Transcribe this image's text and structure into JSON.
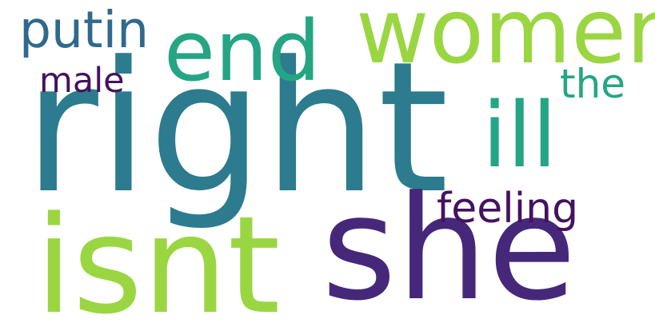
{
  "words": {
    "right": {
      "text": "right",
      "color": "#2c7b8e"
    },
    "she": {
      "text": "she",
      "color": "#46287a"
    },
    "isnt": {
      "text": "isnt",
      "color": "#9ad641"
    },
    "women": {
      "text": "women",
      "color": "#9ad641"
    },
    "end": {
      "text": "end",
      "color": "#25a584"
    },
    "ill": {
      "text": "ill",
      "color": "#25a584"
    },
    "putin": {
      "text": "putin",
      "color": "#2f6a8d"
    },
    "feeling": {
      "text": "feeling",
      "color": "#45125e"
    },
    "the": {
      "text": "the",
      "color": "#25a584"
    },
    "male": {
      "text": "male",
      "color": "#45125e"
    }
  }
}
